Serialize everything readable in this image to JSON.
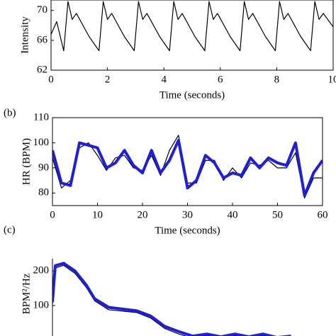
{
  "chart_data": [
    {
      "type": "line",
      "xlabel": "Time (seconds)",
      "ylabel": "Intensity",
      "xlim": [
        0,
        10
      ],
      "ylim": [
        62,
        71.4
      ],
      "xticks": [
        0,
        2,
        4,
        6,
        8,
        10
      ],
      "yticks": [
        62,
        66,
        70
      ],
      "series": [
        {
          "color": "#000000",
          "width": 1.2,
          "x": [
            0,
            0.2,
            0.45,
            0.6,
            0.75,
            0.9,
            1.35,
            1.7,
            1.85,
            2.0,
            2.15,
            2.6,
            2.95,
            3.1,
            3.25,
            3.4,
            3.85,
            4.2,
            4.35,
            4.5,
            4.65,
            5.1,
            5.45,
            5.6,
            5.75,
            5.9,
            6.35,
            6.7,
            6.85,
            7.0,
            7.15,
            7.6,
            7.95,
            8.1,
            8.25,
            8.4,
            8.85,
            9.2,
            9.35,
            9.5,
            9.65,
            10
          ],
          "values": [
            66.8,
            68.5,
            64.6,
            71.2,
            68.8,
            69.6,
            66.5,
            64.6,
            71.2,
            68.8,
            69.6,
            66.5,
            64.6,
            71.2,
            68.8,
            69.6,
            66.5,
            64.6,
            71.2,
            68.8,
            69.6,
            66.5,
            64.6,
            71.2,
            68.8,
            69.6,
            66.5,
            64.6,
            71.2,
            68.8,
            69.6,
            66.5,
            64.6,
            71.2,
            68.8,
            69.6,
            66.5,
            64.6,
            71.2,
            68.8,
            69.6,
            67.8
          ]
        }
      ]
    },
    {
      "type": "line",
      "label": "(b)",
      "xlabel": "Time (seconds)",
      "ylabel": "HR (BPM)",
      "xlim": [
        0,
        60
      ],
      "ylim": [
        75,
        110
      ],
      "xticks": [
        0,
        10,
        20,
        30,
        40,
        50,
        60
      ],
      "yticks": [
        80,
        90,
        100,
        110
      ],
      "series": [
        {
          "color": "#000000",
          "width": 1.2,
          "x": [
            0,
            2,
            4,
            6,
            8,
            10,
            12,
            14,
            16,
            18,
            20,
            22,
            24,
            26,
            28,
            30,
            32,
            34,
            36,
            38,
            40,
            42,
            44,
            46,
            48,
            50,
            52,
            54,
            56,
            58,
            60
          ],
          "values": [
            94,
            82,
            85,
            98,
            100,
            95,
            89,
            94,
            95,
            90,
            89,
            95,
            87,
            97,
            103,
            84,
            84,
            93,
            93,
            85,
            90,
            86,
            92,
            91,
            93,
            90,
            90,
            96,
            78,
            86,
            86
          ]
        },
        {
          "color": "#1f1fd6",
          "width": 4,
          "x": [
            0,
            2,
            4,
            6,
            8,
            10,
            12,
            14,
            16,
            18,
            20,
            22,
            24,
            26,
            28,
            30,
            32,
            34,
            36,
            38,
            40,
            42,
            44,
            46,
            48,
            50,
            52,
            54,
            56,
            58,
            60
          ],
          "values": [
            97,
            84,
            83,
            100,
            99,
            98,
            90,
            92,
            97,
            91,
            88,
            97,
            88,
            93,
            101,
            82,
            85,
            95,
            92,
            86,
            88,
            87,
            94,
            90,
            94,
            92,
            91,
            100,
            79,
            88,
            93
          ]
        }
      ]
    },
    {
      "type": "line",
      "label": "(c)",
      "ylabel": "BPM²/Hz",
      "xlim": [
        0,
        1
      ],
      "ylim": [
        0,
        235
      ],
      "yticks": [
        100,
        200
      ],
      "series": [
        {
          "color": "#000000",
          "width": 1.2,
          "x": [
            0,
            0.01,
            0.04,
            0.08,
            0.12,
            0.15,
            0.2,
            0.25,
            0.3,
            0.35,
            0.4,
            0.45,
            0.5,
            0.55,
            0.6,
            0.65,
            0.7,
            0.75,
            0.8,
            0.85
          ],
          "values": [
            105,
            208,
            216,
            193,
            153,
            114,
            88,
            84,
            80,
            64,
            34,
            18,
            6,
            14,
            5,
            13,
            5,
            14,
            4,
            8
          ]
        },
        {
          "color": "#1f1fd6",
          "width": 4,
          "x": [
            0,
            0.01,
            0.04,
            0.08,
            0.12,
            0.15,
            0.2,
            0.25,
            0.3,
            0.35,
            0.4,
            0.45,
            0.5,
            0.55,
            0.6,
            0.65,
            0.7,
            0.75,
            0.8,
            0.85
          ],
          "values": [
            110,
            215,
            222,
            200,
            160,
            120,
            95,
            90,
            85,
            70,
            40,
            25,
            12,
            18,
            10,
            18,
            10,
            18,
            8,
            12
          ]
        }
      ]
    }
  ]
}
